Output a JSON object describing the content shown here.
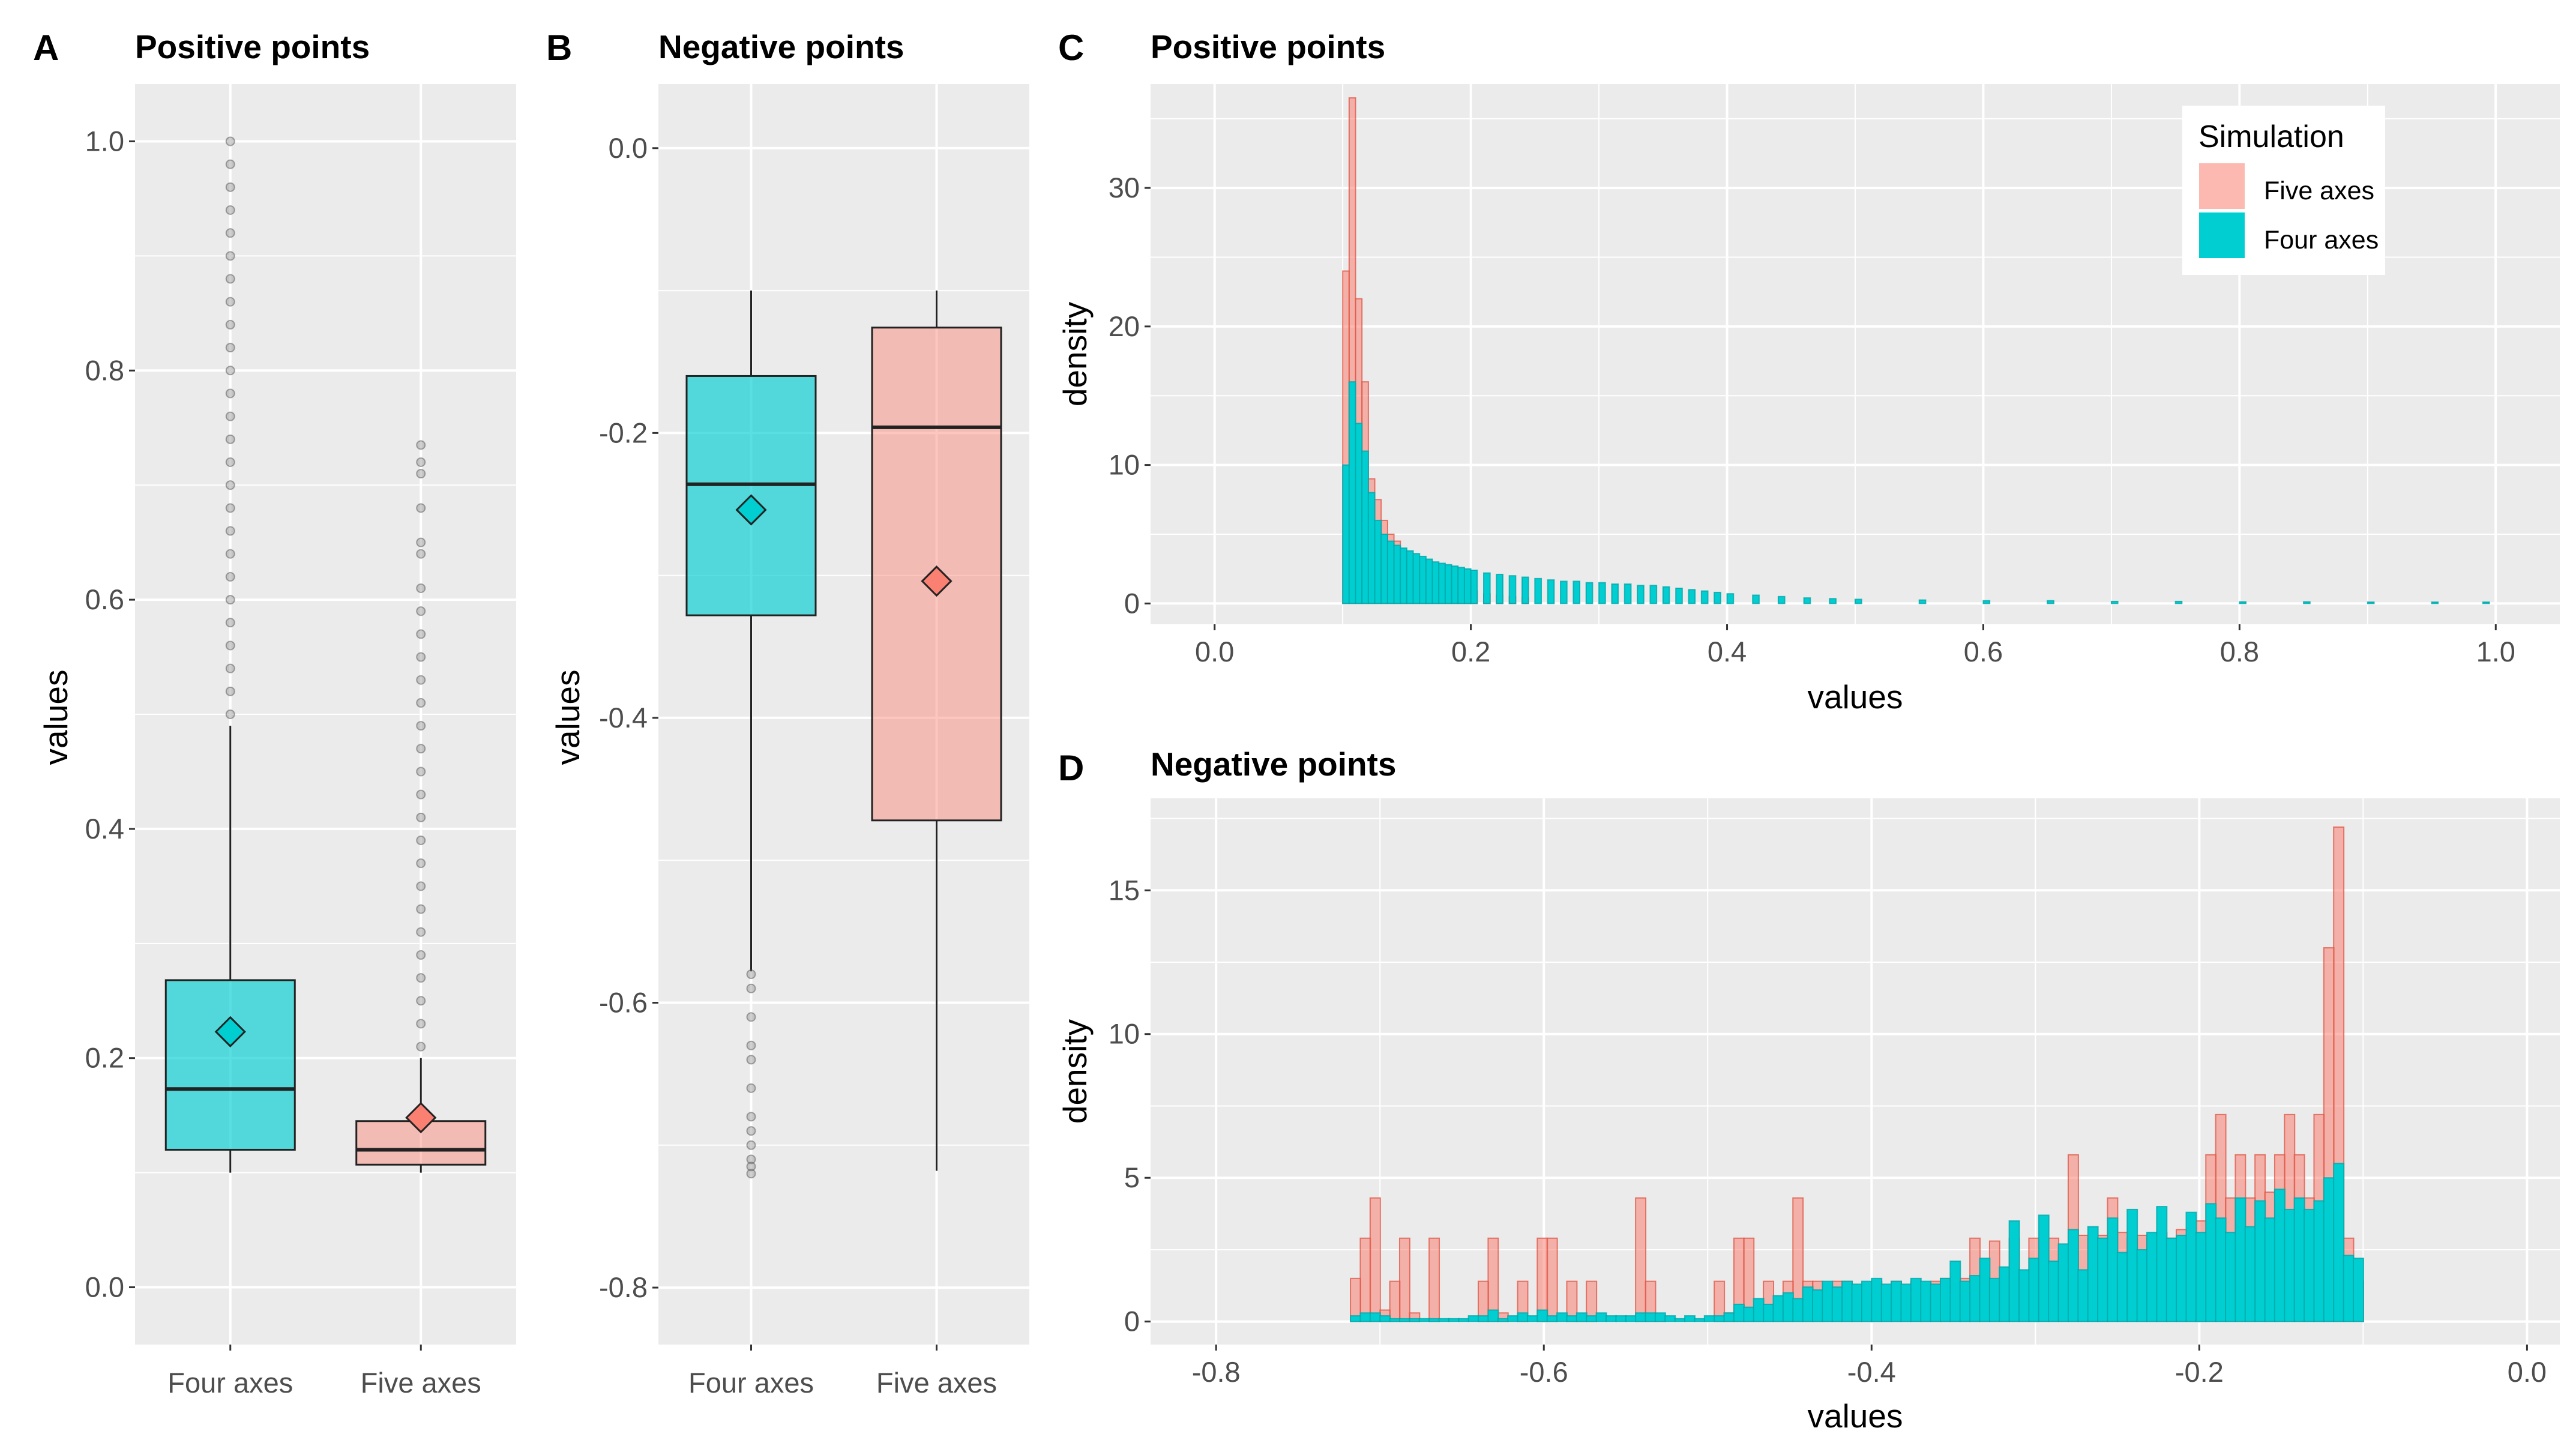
{
  "figure": {
    "panels": [
      {
        "label": "A",
        "title": "Positive points"
      },
      {
        "label": "B",
        "title": "Negative points"
      },
      {
        "label": "C",
        "title": "Positive points"
      },
      {
        "label": "D",
        "title": "Negative points"
      }
    ]
  },
  "colors": {
    "four_axes": "#00ced1",
    "five_axes": "#fa8072",
    "panel_bg": "#ebebeb",
    "grid": "#ffffff",
    "outlier": "#777777"
  },
  "chart_data": [
    {
      "panel": "A",
      "type": "box",
      "title": "Positive points",
      "xlabel": "",
      "ylabel": "values",
      "categories": [
        "Four axes",
        "Five axes"
      ],
      "ylim": [
        -0.05,
        1.05
      ],
      "yticks": [
        0.0,
        0.2,
        0.4,
        0.6,
        0.8,
        1.0
      ],
      "ytick_labels": [
        "0.0",
        "0.2",
        "0.4",
        "0.6",
        "0.8",
        "1.0"
      ],
      "boxes": [
        {
          "name": "Four axes",
          "whisker_low": 0.1,
          "q1": 0.12,
          "median": 0.173,
          "q3": 0.268,
          "whisker_high": 0.49,
          "mean": 0.223,
          "outliers": [
            0.5,
            0.52,
            0.54,
            0.56,
            0.58,
            0.6,
            0.62,
            0.64,
            0.66,
            0.68,
            0.7,
            0.72,
            0.74,
            0.76,
            0.78,
            0.8,
            0.82,
            0.84,
            0.86,
            0.88,
            0.9,
            0.92,
            0.94,
            0.96,
            0.98,
            1.0
          ]
        },
        {
          "name": "Five axes",
          "whisker_low": 0.1,
          "q1": 0.107,
          "median": 0.12,
          "q3": 0.145,
          "whisker_high": 0.2,
          "mean": 0.148,
          "outliers": [
            0.21,
            0.23,
            0.25,
            0.27,
            0.29,
            0.31,
            0.33,
            0.35,
            0.37,
            0.39,
            0.41,
            0.43,
            0.45,
            0.47,
            0.49,
            0.51,
            0.53,
            0.55,
            0.57,
            0.59,
            0.61,
            0.64,
            0.65,
            0.68,
            0.71,
            0.72,
            0.735
          ]
        }
      ]
    },
    {
      "panel": "B",
      "type": "box",
      "title": "Negative points",
      "xlabel": "",
      "ylabel": "values",
      "categories": [
        "Four axes",
        "Five axes"
      ],
      "ylim": [
        -0.84,
        0.045
      ],
      "yticks": [
        0.0,
        -0.2,
        -0.4,
        -0.6,
        -0.8
      ],
      "ytick_labels": [
        "0.0",
        "-0.2",
        "-0.4",
        "-0.6",
        "-0.8"
      ],
      "boxes": [
        {
          "name": "Four axes",
          "whisker_low": -0.578,
          "q1": -0.328,
          "median": -0.236,
          "q3": -0.16,
          "whisker_high": -0.1,
          "mean": -0.254,
          "outliers": [
            -0.58,
            -0.59,
            -0.61,
            -0.63,
            -0.64,
            -0.66,
            -0.68,
            -0.69,
            -0.7,
            -0.71,
            -0.715,
            -0.72
          ]
        },
        {
          "name": "Five axes",
          "whisker_low": -0.718,
          "q1": -0.472,
          "median": -0.196,
          "q3": -0.126,
          "whisker_high": -0.1,
          "mean": -0.304,
          "outliers": []
        }
      ]
    },
    {
      "panel": "C",
      "type": "histogram",
      "title": "Positive points",
      "xlabel": "values",
      "ylabel": "density",
      "xlim": [
        -0.05,
        1.05
      ],
      "ylim": [
        -1.5,
        37.5
      ],
      "xticks": [
        0.0,
        0.2,
        0.4,
        0.6,
        0.8,
        1.0
      ],
      "xtick_labels": [
        "0.0",
        "0.2",
        "0.4",
        "0.6",
        "0.8",
        "1.0"
      ],
      "yticks": [
        0,
        10,
        20,
        30
      ],
      "ytick_labels": [
        "0",
        "10",
        "20",
        "30"
      ],
      "bin_width": 0.005,
      "series": [
        {
          "name": "Five axes",
          "bin_start": [
            0.1,
            0.105,
            0.11,
            0.115,
            0.12,
            0.125,
            0.13,
            0.135,
            0.14,
            0.145,
            0.15,
            0.155,
            0.16,
            0.165,
            0.17,
            0.175,
            0.18,
            0.185,
            0.19,
            0.195,
            0.2,
            0.21,
            0.22,
            0.23,
            0.24
          ],
          "values": [
            24,
            36.5,
            22,
            16,
            9,
            7.5,
            6,
            5,
            4.5,
            3.7,
            3,
            2.6,
            2.3,
            2.0,
            1.8,
            1.6,
            1.4,
            1.2,
            1.1,
            1.0,
            0.9,
            0.7,
            0.6,
            0.5,
            0.4
          ]
        },
        {
          "name": "Four axes",
          "bin_start": [
            0.1,
            0.105,
            0.11,
            0.115,
            0.12,
            0.125,
            0.13,
            0.135,
            0.14,
            0.145,
            0.15,
            0.155,
            0.16,
            0.165,
            0.17,
            0.175,
            0.18,
            0.185,
            0.19,
            0.195,
            0.2,
            0.21,
            0.22,
            0.23,
            0.24,
            0.25,
            0.26,
            0.27,
            0.28,
            0.29,
            0.3,
            0.31,
            0.32,
            0.33,
            0.34,
            0.35,
            0.36,
            0.37,
            0.38,
            0.39,
            0.4,
            0.42,
            0.44,
            0.46,
            0.48,
            0.5,
            0.55,
            0.6,
            0.65,
            0.7,
            0.75,
            0.8,
            0.85,
            0.9,
            0.95,
            0.99
          ],
          "values": [
            10,
            16,
            13,
            11,
            8,
            6,
            5,
            4.5,
            4.2,
            4,
            3.8,
            3.6,
            3.4,
            3.2,
            3.0,
            2.9,
            2.8,
            2.7,
            2.6,
            2.5,
            2.4,
            2.2,
            2.1,
            2.0,
            1.9,
            1.8,
            1.7,
            1.6,
            1.6,
            1.5,
            1.5,
            1.4,
            1.4,
            1.3,
            1.3,
            1.2,
            1.1,
            1.0,
            0.9,
            0.8,
            0.7,
            0.6,
            0.5,
            0.4,
            0.35,
            0.3,
            0.25,
            0.2,
            0.2,
            0.15,
            0.15,
            0.12,
            0.12,
            0.1,
            0.1,
            0.1
          ]
        }
      ],
      "legend": {
        "title": "Simulation",
        "position": "top-right",
        "items": [
          "Five axes",
          "Four axes"
        ]
      }
    },
    {
      "panel": "D",
      "type": "histogram",
      "title": "Negative points",
      "xlabel": "values",
      "ylabel": "density",
      "xlim": [
        -0.84,
        0.02
      ],
      "ylim": [
        -0.8,
        18.2
      ],
      "xticks": [
        -0.8,
        -0.6,
        -0.4,
        -0.2,
        0.0
      ],
      "xtick_labels": [
        "-0.8",
        "-0.6",
        "-0.4",
        "-0.2",
        "0.0"
      ],
      "yticks": [
        0,
        5,
        10,
        15
      ],
      "ytick_labels": [
        "0",
        "5",
        "10",
        "15"
      ],
      "bin_width": 0.0062,
      "series": [
        {
          "name": "Five axes",
          "bin_start": [
            -0.718,
            -0.712,
            -0.706,
            -0.7,
            -0.694,
            -0.688,
            -0.682,
            -0.676,
            -0.67,
            -0.664,
            -0.658,
            -0.652,
            -0.646,
            -0.64,
            -0.634,
            -0.628,
            -0.622,
            -0.616,
            -0.61,
            -0.604,
            -0.598,
            -0.592,
            -0.586,
            -0.58,
            -0.574,
            -0.568,
            -0.562,
            -0.556,
            -0.55,
            -0.544,
            -0.538,
            -0.532,
            -0.526,
            -0.52,
            -0.514,
            -0.508,
            -0.502,
            -0.496,
            -0.49,
            -0.484,
            -0.478,
            -0.472,
            -0.466,
            -0.46,
            -0.454,
            -0.448,
            -0.442,
            -0.436,
            -0.43,
            -0.424,
            -0.418,
            -0.412,
            -0.406,
            -0.4,
            -0.394,
            -0.388,
            -0.382,
            -0.376,
            -0.37,
            -0.364,
            -0.358,
            -0.352,
            -0.346,
            -0.34,
            -0.334,
            -0.328,
            -0.322,
            -0.316,
            -0.31,
            -0.304,
            -0.298,
            -0.292,
            -0.286,
            -0.28,
            -0.274,
            -0.268,
            -0.262,
            -0.256,
            -0.25,
            -0.244,
            -0.238,
            -0.232,
            -0.226,
            -0.22,
            -0.214,
            -0.208,
            -0.202,
            -0.196,
            -0.19,
            -0.184,
            -0.178,
            -0.172,
            -0.166,
            -0.16,
            -0.154,
            -0.148,
            -0.142,
            -0.136,
            -0.13,
            -0.124,
            -0.118,
            -0.112,
            -0.106
          ],
          "values": [
            1.5,
            2.9,
            4.3,
            0.4,
            1.4,
            2.9,
            0.3,
            0,
            2.9,
            0,
            0,
            0,
            0,
            1.4,
            2.9,
            0.3,
            0,
            1.4,
            0,
            2.9,
            2.9,
            0,
            1.4,
            0.2,
            1.4,
            0,
            0,
            0,
            0,
            4.3,
            1.4,
            0.1,
            0,
            0,
            0,
            0,
            0,
            1.4,
            0.3,
            2.9,
            2.9,
            0.3,
            1.4,
            0.3,
            1.4,
            4.3,
            1.4,
            1.4,
            0.1,
            1.4,
            1.4,
            0.1,
            0.3,
            1.4,
            0.3,
            1.4,
            0.3,
            1.4,
            0.4,
            1.4,
            1.5,
            1.4,
            1.5,
            2.9,
            1.5,
            2.8,
            1.5,
            2.9,
            1.6,
            2.9,
            1.5,
            2.9,
            2.5,
            5.8,
            3.0,
            2.9,
            3.0,
            4.3,
            3.1,
            2.9,
            3.0,
            2.9,
            3.1,
            2.9,
            3.2,
            2.9,
            3.5,
            5.8,
            7.2,
            4.3,
            5.8,
            4.3,
            5.8,
            4.5,
            5.8,
            7.2,
            5.8,
            4.3,
            7.2,
            13.0,
            17.2,
            2.9,
            1.4
          ]
        },
        {
          "name": "Four axes",
          "bin_start": [
            -0.718,
            -0.712,
            -0.706,
            -0.7,
            -0.694,
            -0.688,
            -0.682,
            -0.676,
            -0.67,
            -0.664,
            -0.658,
            -0.652,
            -0.646,
            -0.64,
            -0.634,
            -0.628,
            -0.622,
            -0.616,
            -0.61,
            -0.604,
            -0.598,
            -0.592,
            -0.586,
            -0.58,
            -0.574,
            -0.568,
            -0.562,
            -0.556,
            -0.55,
            -0.544,
            -0.538,
            -0.532,
            -0.526,
            -0.52,
            -0.514,
            -0.508,
            -0.502,
            -0.496,
            -0.49,
            -0.484,
            -0.478,
            -0.472,
            -0.466,
            -0.46,
            -0.454,
            -0.448,
            -0.442,
            -0.436,
            -0.43,
            -0.424,
            -0.418,
            -0.412,
            -0.406,
            -0.4,
            -0.394,
            -0.388,
            -0.382,
            -0.376,
            -0.37,
            -0.364,
            -0.358,
            -0.352,
            -0.346,
            -0.34,
            -0.334,
            -0.328,
            -0.322,
            -0.316,
            -0.31,
            -0.304,
            -0.298,
            -0.292,
            -0.286,
            -0.28,
            -0.274,
            -0.268,
            -0.262,
            -0.256,
            -0.25,
            -0.244,
            -0.238,
            -0.232,
            -0.226,
            -0.22,
            -0.214,
            -0.208,
            -0.202,
            -0.196,
            -0.19,
            -0.184,
            -0.178,
            -0.172,
            -0.166,
            -0.16,
            -0.154,
            -0.148,
            -0.142,
            -0.136,
            -0.13,
            -0.124,
            -0.118,
            -0.112,
            -0.106
          ],
          "values": [
            0.2,
            0.3,
            0.3,
            0.2,
            0.1,
            0.1,
            0.1,
            0.1,
            0.1,
            0.1,
            0.1,
            0.1,
            0.2,
            0.2,
            0.4,
            0.1,
            0.2,
            0.3,
            0.2,
            0.4,
            0.2,
            0.3,
            0.2,
            0.3,
            0.2,
            0.3,
            0.2,
            0.2,
            0.2,
            0.3,
            0.3,
            0.3,
            0.2,
            0.1,
            0.2,
            0.1,
            0.2,
            0.2,
            0.3,
            0.6,
            0.5,
            0.8,
            0.6,
            0.9,
            1.0,
            0.8,
            1.2,
            1.1,
            1.4,
            1.2,
            1.4,
            1.3,
            1.4,
            1.5,
            1.3,
            1.4,
            1.3,
            1.5,
            1.4,
            1.3,
            1.5,
            2.1,
            1.4,
            1.6,
            2.2,
            1.5,
            1.9,
            3.5,
            1.8,
            2.2,
            3.7,
            2.1,
            2.7,
            3.2,
            1.8,
            3.3,
            2.9,
            3.6,
            2.4,
            3.9,
            2.5,
            3.1,
            4.0,
            2.9,
            3.0,
            3.8,
            3.1,
            4.1,
            3.6,
            3.1,
            4.3,
            3.3,
            4.2,
            3.6,
            4.6,
            3.9,
            4.3,
            3.9,
            4.2,
            5.0,
            5.5,
            2.3,
            2.2
          ]
        }
      ]
    }
  ]
}
